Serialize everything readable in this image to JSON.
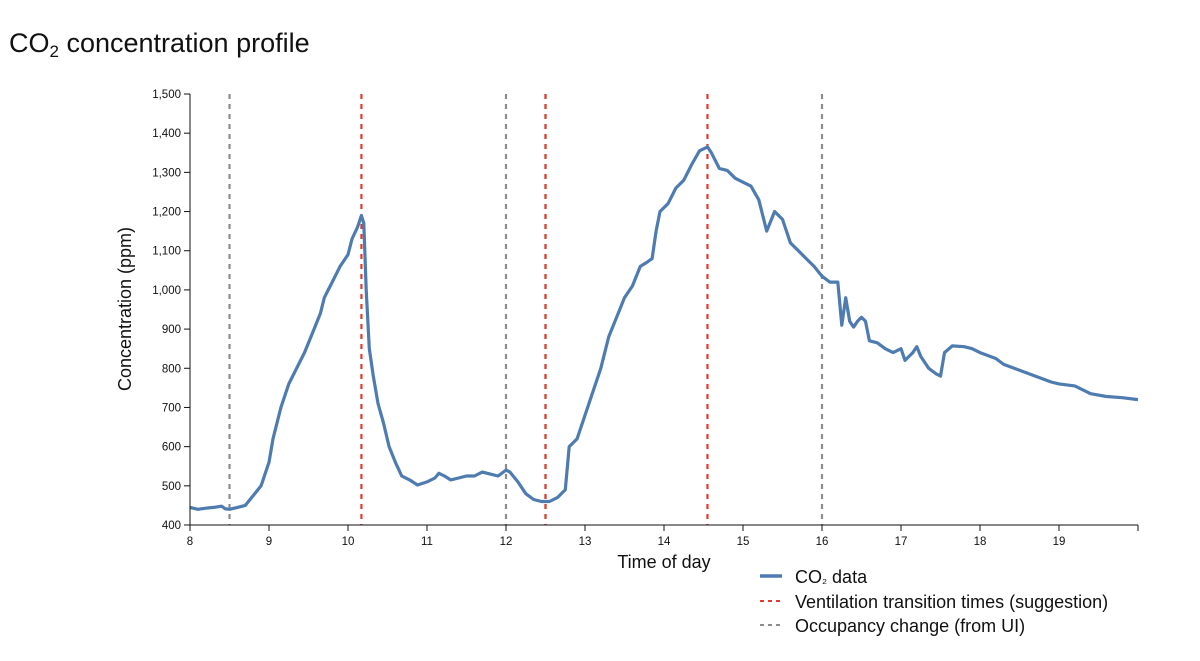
{
  "chart_data": {
    "type": "line",
    "title_main": "CO",
    "title_sub": "2",
    "title_rest": " concentration profile",
    "xlabel": "Time of day",
    "ylabel": "Concentration (ppm)",
    "xlim": [
      8,
      20
    ],
    "ylim": [
      400,
      1500
    ],
    "xticks": [
      8,
      9,
      10,
      11,
      12,
      13,
      14,
      15,
      16,
      17,
      18,
      19
    ],
    "yticks": [
      400,
      500,
      600,
      700,
      800,
      900,
      1000,
      1100,
      1200,
      1300,
      1400,
      1500
    ],
    "ytick_labels": [
      "400",
      "500",
      "600",
      "700",
      "800",
      "900",
      "1,000",
      "1,100",
      "1,200",
      "1,300",
      "1,400",
      "1,500"
    ],
    "colors": {
      "data": "#4e7bb0",
      "ventilation": "#e03b2f",
      "occupancy": "#8c8c8c"
    },
    "series": [
      {
        "name": "CO₂ data",
        "x": [
          8.0,
          8.1,
          8.2,
          8.3,
          8.4,
          8.45,
          8.5,
          8.6,
          8.7,
          8.8,
          8.9,
          9.0,
          9.05,
          9.15,
          9.25,
          9.35,
          9.45,
          9.55,
          9.65,
          9.7,
          9.8,
          9.9,
          10.0,
          10.05,
          10.12,
          10.17,
          10.2,
          10.23,
          10.27,
          10.32,
          10.38,
          10.45,
          10.52,
          10.6,
          10.68,
          10.78,
          10.88,
          11.0,
          11.1,
          11.15,
          11.22,
          11.3,
          11.4,
          11.5,
          11.6,
          11.7,
          11.8,
          11.9,
          12.0,
          12.05,
          12.15,
          12.25,
          12.35,
          12.45,
          12.55,
          12.65,
          12.75,
          12.8,
          12.9,
          13.0,
          13.1,
          13.2,
          13.3,
          13.4,
          13.5,
          13.6,
          13.7,
          13.78,
          13.85,
          13.9,
          13.95,
          14.05,
          14.15,
          14.25,
          14.35,
          14.45,
          14.55,
          14.6,
          14.7,
          14.8,
          14.9,
          15.0,
          15.1,
          15.2,
          15.3,
          15.4,
          15.5,
          15.6,
          15.7,
          15.8,
          15.9,
          16.0,
          16.1,
          16.2,
          16.25,
          16.3,
          16.35,
          16.4,
          16.45,
          16.5,
          16.55,
          16.6,
          16.7,
          16.8,
          16.9,
          17.0,
          17.05,
          17.15,
          17.2,
          17.25,
          17.35,
          17.45,
          17.5,
          17.55,
          17.65,
          17.8,
          17.9,
          18.0,
          18.2,
          18.3,
          18.5,
          18.7,
          18.9,
          19.0,
          19.2,
          19.4,
          19.6,
          19.8,
          20.0
        ],
        "y": [
          445,
          440,
          443,
          445,
          448,
          441,
          440,
          445,
          450,
          475,
          500,
          560,
          620,
          700,
          760,
          800,
          840,
          890,
          940,
          980,
          1020,
          1060,
          1090,
          1130,
          1160,
          1190,
          1170,
          1000,
          850,
          780,
          710,
          660,
          600,
          560,
          525,
          515,
          502,
          510,
          520,
          532,
          525,
          515,
          520,
          525,
          525,
          535,
          530,
          525,
          540,
          535,
          510,
          480,
          465,
          460,
          460,
          470,
          490,
          600,
          620,
          680,
          740,
          800,
          880,
          930,
          980,
          1010,
          1060,
          1070,
          1080,
          1150,
          1200,
          1220,
          1260,
          1280,
          1320,
          1355,
          1365,
          1350,
          1310,
          1305,
          1285,
          1275,
          1265,
          1230,
          1150,
          1200,
          1180,
          1120,
          1100,
          1080,
          1060,
          1035,
          1020,
          1020,
          910,
          980,
          920,
          905,
          920,
          930,
          920,
          870,
          865,
          850,
          840,
          850,
          820,
          840,
          855,
          830,
          800,
          785,
          780,
          840,
          857,
          855,
          850,
          840,
          825,
          810,
          795,
          780,
          765,
          760,
          755,
          735,
          728,
          725,
          720
        ]
      }
    ],
    "vlines": {
      "ventilation": [
        10.17,
        12.5,
        14.55
      ],
      "occupancy": [
        8.5,
        12.0,
        12.5,
        16.0
      ]
    },
    "legend": {
      "placement": "bottom-right",
      "data_main": "CO",
      "data_sub": "₂",
      "data_rest": " data",
      "ventilation": "Ventilation transition times (suggestion)",
      "occupancy": "Occupancy change (from UI)"
    }
  }
}
